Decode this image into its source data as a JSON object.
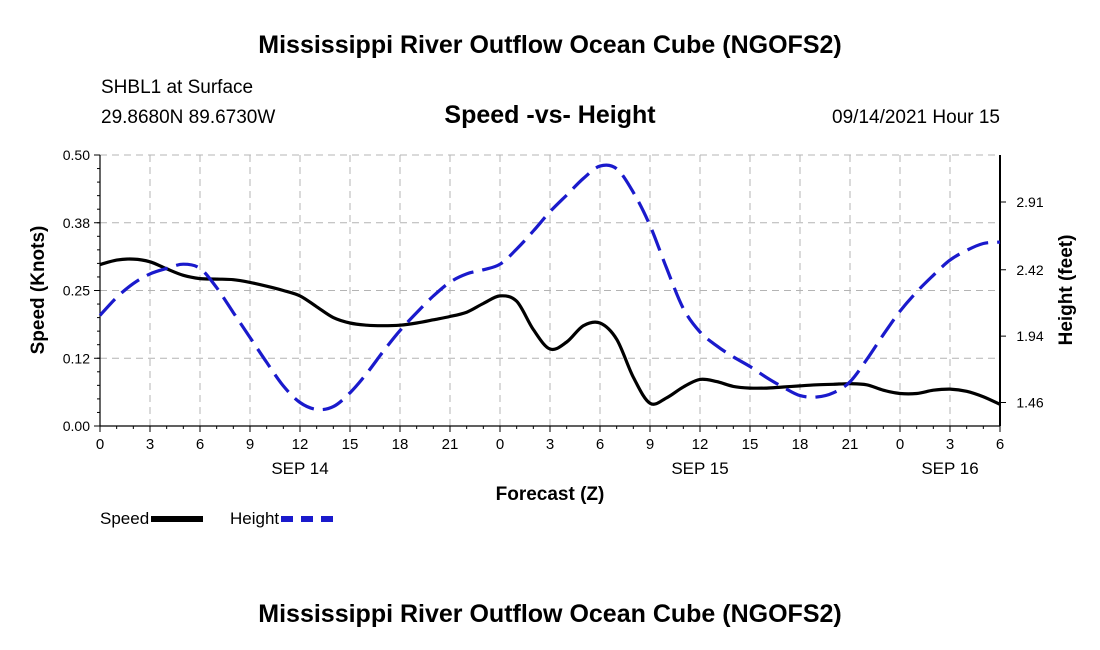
{
  "header": {
    "title": "Mississippi River Outflow Ocean Cube (NGOFS2)",
    "station": "SHBL1 at Surface",
    "coords": "29.8680N  89.6730W",
    "subtitle": "Speed -vs- Height",
    "datetime": "09/14/2021 Hour 15"
  },
  "footer": {
    "title": "Mississippi River Outflow Ocean Cube (NGOFS2)"
  },
  "legend": {
    "speed": "Speed",
    "height": "Height"
  },
  "colors": {
    "speed": "#000000",
    "height": "#1a1acc",
    "grid": "#b4b4b4"
  },
  "chart_data": {
    "type": "line",
    "xlabel": "Forecast (Z)",
    "ylabel_left": "Speed (Knots)",
    "ylabel_right": "Height (feet)",
    "x_range_hours": [
      0,
      54
    ],
    "x_ticks": [
      {
        "h": 0,
        "label": "0"
      },
      {
        "h": 3,
        "label": "3"
      },
      {
        "h": 6,
        "label": "6"
      },
      {
        "h": 9,
        "label": "9"
      },
      {
        "h": 12,
        "label": "12"
      },
      {
        "h": 15,
        "label": "15"
      },
      {
        "h": 18,
        "label": "18"
      },
      {
        "h": 21,
        "label": "21"
      },
      {
        "h": 24,
        "label": "0"
      },
      {
        "h": 27,
        "label": "3"
      },
      {
        "h": 30,
        "label": "6"
      },
      {
        "h": 33,
        "label": "9"
      },
      {
        "h": 36,
        "label": "12"
      },
      {
        "h": 39,
        "label": "15"
      },
      {
        "h": 42,
        "label": "18"
      },
      {
        "h": 45,
        "label": "21"
      },
      {
        "h": 48,
        "label": "0"
      },
      {
        "h": 51,
        "label": "3"
      },
      {
        "h": 54,
        "label": "6"
      }
    ],
    "day_labels": [
      {
        "h": 12,
        "label": "SEP 14"
      },
      {
        "h": 36,
        "label": "SEP 15"
      },
      {
        "h": 51,
        "label": "SEP 16"
      }
    ],
    "y_left": {
      "range": [
        0,
        0.5
      ],
      "ticks": [
        "0.00",
        "0.12",
        "0.25",
        "0.38",
        "0.50"
      ],
      "tick_values": [
        0,
        0.125,
        0.25,
        0.375,
        0.5
      ]
    },
    "y_right": {
      "range": [
        1.29,
        3.25
      ],
      "ticks": [
        "1.46",
        "1.94",
        "2.42",
        "2.91"
      ],
      "tick_values": [
        1.46,
        1.94,
        2.42,
        2.91
      ]
    },
    "series": [
      {
        "name": "Speed",
        "axis": "left",
        "x": [
          0,
          1,
          2,
          3,
          4,
          5,
          6,
          7,
          8,
          9,
          10,
          11,
          12,
          13,
          14,
          15,
          16,
          17,
          18,
          19,
          20,
          21,
          22,
          23,
          24,
          25,
          26,
          27,
          28,
          29,
          30,
          31,
          32,
          33,
          34,
          35,
          36,
          37,
          38,
          39,
          40,
          41,
          42,
          43,
          44,
          45,
          46,
          47,
          48,
          49,
          50,
          51,
          52,
          53,
          54
        ],
        "values": [
          0.298,
          0.306,
          0.308,
          0.303,
          0.29,
          0.278,
          0.272,
          0.271,
          0.27,
          0.265,
          0.258,
          0.25,
          0.24,
          0.22,
          0.2,
          0.19,
          0.186,
          0.185,
          0.186,
          0.19,
          0.196,
          0.202,
          0.21,
          0.226,
          0.24,
          0.23,
          0.178,
          0.142,
          0.155,
          0.185,
          0.19,
          0.16,
          0.09,
          0.042,
          0.052,
          0.072,
          0.086,
          0.082,
          0.073,
          0.07,
          0.07,
          0.072,
          0.074,
          0.076,
          0.077,
          0.078,
          0.076,
          0.066,
          0.06,
          0.06,
          0.066,
          0.068,
          0.064,
          0.054,
          0.04
        ]
      },
      {
        "name": "Height",
        "axis": "right",
        "x": [
          0,
          1,
          2,
          3,
          4,
          5,
          6,
          7,
          8,
          9,
          10,
          11,
          12,
          13,
          14,
          15,
          16,
          17,
          18,
          19,
          20,
          21,
          22,
          23,
          24,
          25,
          26,
          27,
          28,
          29,
          30,
          31,
          32,
          33,
          34,
          35,
          36,
          37,
          38,
          39,
          40,
          41,
          42,
          43,
          44,
          45,
          46,
          47,
          48,
          49,
          50,
          51,
          52,
          53,
          54
        ],
        "values": [
          2.09,
          2.22,
          2.32,
          2.39,
          2.43,
          2.46,
          2.43,
          2.29,
          2.11,
          1.93,
          1.75,
          1.58,
          1.46,
          1.41,
          1.43,
          1.53,
          1.67,
          1.83,
          1.98,
          2.11,
          2.23,
          2.33,
          2.39,
          2.42,
          2.46,
          2.57,
          2.7,
          2.84,
          2.96,
          3.08,
          3.17,
          3.15,
          2.98,
          2.74,
          2.43,
          2.14,
          1.97,
          1.87,
          1.79,
          1.72,
          1.64,
          1.57,
          1.51,
          1.5,
          1.53,
          1.61,
          1.77,
          1.95,
          2.12,
          2.26,
          2.38,
          2.49,
          2.56,
          2.61,
          2.62
        ]
      }
    ]
  }
}
